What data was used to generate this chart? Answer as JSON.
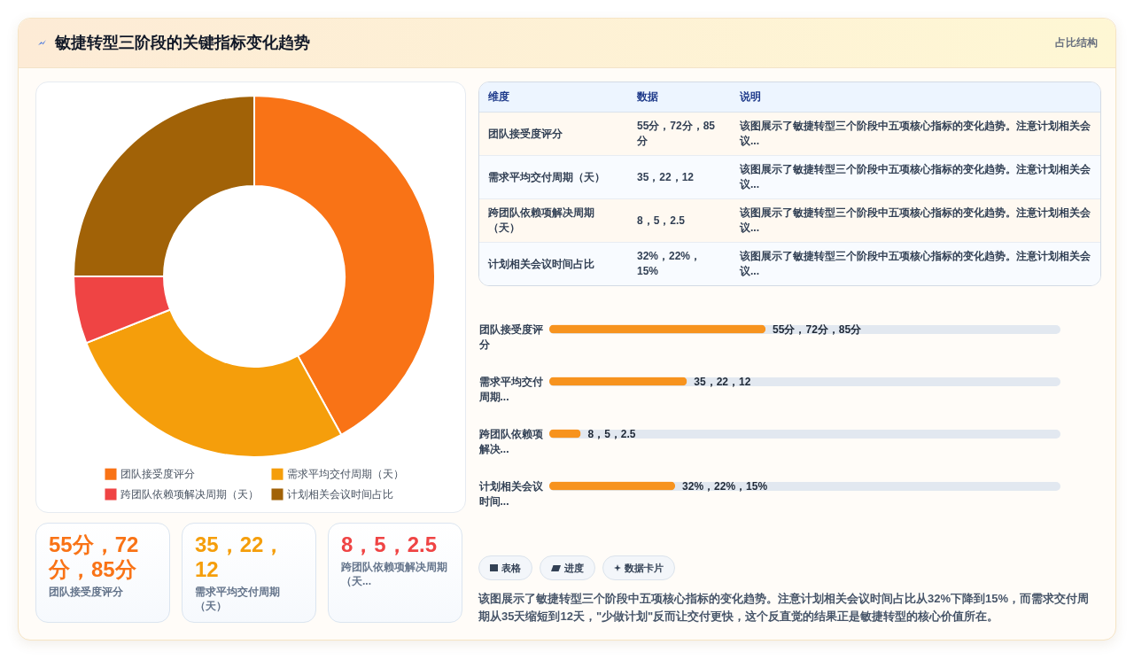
{
  "chart_data": [
    {
      "type": "other",
      "title": "敏捷转型三阶段的关键指标变化趋势",
      "annotations": [
        "占比结构"
      ]
    },
    {
      "type": "donut",
      "categories": [
        "团队接受度评分",
        "需求平均交付周期（天）",
        "跨团队依赖项解决周期（天）",
        "计划相关会议时间占比"
      ],
      "values": [
        42,
        27,
        6,
        25
      ],
      "colors": [
        "#f97316",
        "#f59e0b",
        "#ef4444",
        "#a16207"
      ],
      "legend": "bottom"
    },
    {
      "type": "other",
      "annotations": [
        "维度",
        "数据",
        "说明",
        "团队接受度评分",
        "55分，72分，85分",
        "该图展示了敏捷转型三个阶段中五项核心指标的变化趋势。注意计划相关会议...",
        "需求平均交付周期（天）",
        "35，22，12",
        "该图展示了敏捷转型三个阶段中五项核心指标的变化趋势。注意计划相关会议...",
        "跨团队依赖项解决周期（天）",
        "8，5，2.5",
        "该图展示了敏捷转型三个阶段中五项核心指标的变化趋势。注意计划相关会议...",
        "计划相关会议时间占比",
        "32%，22%，15%",
        "该图展示了敏捷转型三个阶段中五项核心指标的变化趋势。注意计划相关会议..."
      ]
    },
    {
      "type": "bar",
      "orientation": "horizontal",
      "categories": [
        "团队接受度评分",
        "需求平均交付周期...",
        "跨团队依赖项解决...",
        "计划相关会议时间..."
      ],
      "values": [
        55,
        35,
        8,
        32
      ],
      "value_labels": [
        "55分，72分，85分",
        "35，22，12",
        "8，5，2.5",
        "32%，22%，15%"
      ],
      "color": "#f7931e",
      "tick_labels": "y"
    },
    {
      "type": "other",
      "annotations": [
        "55分，72分，85分",
        "团队接受度评分",
        "35，22，12",
        "需求平均交付周期（天）",
        "8，5，2.5",
        "跨团队依赖项解决周期（天..."
      ],
      "colors": [
        "#f97316",
        "#f59e0b",
        "#ef4444"
      ]
    },
    {
      "type": "other",
      "annotations": [
        "表格",
        "进度",
        "数据卡片",
        "该图展示了敏捷转型三个阶段中五项核心指标的变化趋势。注意计划相关会议时间占比从32%下降到15%，而需求交付周期从35天缩短到12天，\"少做计划\"反而让交付更快，这个反直觉的结果正是敏捷转型的核心价值所在。"
      ]
    }
  ]
}
